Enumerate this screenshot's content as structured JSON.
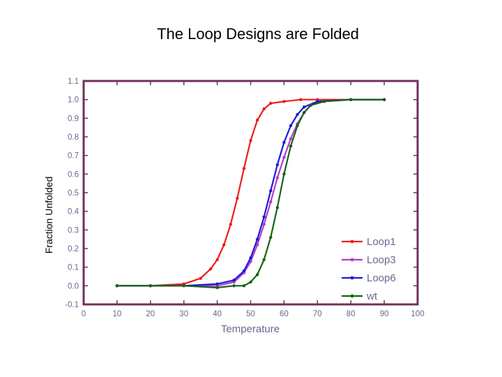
{
  "slide": {
    "title": "The Loop Designs are Folded"
  },
  "chart_data": {
    "type": "line",
    "title": "",
    "xlabel": "Temperature",
    "ylabel": "Fraction Unfolded",
    "xlim": [
      0,
      100
    ],
    "ylim": [
      -0.1,
      1.1
    ],
    "x_ticks": [
      "0",
      "10",
      "20",
      "30",
      "40",
      "50",
      "60",
      "70",
      "80",
      "90",
      "100"
    ],
    "y_ticks": [
      "-0.1",
      "0.0",
      "0.1",
      "0.2",
      "0.3",
      "0.4",
      "0.5",
      "0.6",
      "0.7",
      "0.8",
      "0.9",
      "1.0",
      "1.1"
    ],
    "legend_position": "bottom-right",
    "grid": false,
    "series": [
      {
        "name": "Loop1",
        "color": "#ee1c1c",
        "points": [
          [
            10,
            0.0
          ],
          [
            20,
            0.0
          ],
          [
            30,
            0.01
          ],
          [
            35,
            0.04
          ],
          [
            38,
            0.09
          ],
          [
            40,
            0.14
          ],
          [
            42,
            0.22
          ],
          [
            44,
            0.33
          ],
          [
            46,
            0.47
          ],
          [
            48,
            0.63
          ],
          [
            50,
            0.78
          ],
          [
            52,
            0.89
          ],
          [
            54,
            0.95
          ],
          [
            56,
            0.98
          ],
          [
            60,
            0.99
          ],
          [
            65,
            1.0
          ],
          [
            70,
            1.0
          ],
          [
            80,
            1.0
          ],
          [
            90,
            1.0
          ]
        ]
      },
      {
        "name": "Loop3",
        "color": "#b23bd1",
        "points": [
          [
            10,
            0.0
          ],
          [
            20,
            0.0
          ],
          [
            30,
            0.0
          ],
          [
            40,
            0.0
          ],
          [
            45,
            0.02
          ],
          [
            48,
            0.07
          ],
          [
            50,
            0.13
          ],
          [
            52,
            0.22
          ],
          [
            54,
            0.33
          ],
          [
            56,
            0.45
          ],
          [
            58,
            0.58
          ],
          [
            60,
            0.69
          ],
          [
            62,
            0.79
          ],
          [
            64,
            0.87
          ],
          [
            66,
            0.93
          ],
          [
            68,
            0.97
          ],
          [
            72,
            0.99
          ],
          [
            80,
            1.0
          ],
          [
            90,
            1.0
          ]
        ]
      },
      {
        "name": "Loop6",
        "color": "#1a1adb",
        "points": [
          [
            10,
            0.0
          ],
          [
            20,
            0.0
          ],
          [
            30,
            0.0
          ],
          [
            40,
            0.01
          ],
          [
            45,
            0.03
          ],
          [
            48,
            0.08
          ],
          [
            50,
            0.15
          ],
          [
            52,
            0.25
          ],
          [
            54,
            0.37
          ],
          [
            56,
            0.51
          ],
          [
            58,
            0.65
          ],
          [
            60,
            0.77
          ],
          [
            62,
            0.86
          ],
          [
            64,
            0.92
          ],
          [
            66,
            0.96
          ],
          [
            70,
            0.99
          ],
          [
            80,
            1.0
          ],
          [
            90,
            1.0
          ]
        ]
      },
      {
        "name": "wt",
        "color": "#156215",
        "points": [
          [
            10,
            0.0
          ],
          [
            20,
            0.0
          ],
          [
            30,
            0.0
          ],
          [
            40,
            -0.01
          ],
          [
            45,
            0.0
          ],
          [
            48,
            0.0
          ],
          [
            50,
            0.02
          ],
          [
            52,
            0.06
          ],
          [
            54,
            0.14
          ],
          [
            56,
            0.26
          ],
          [
            58,
            0.42
          ],
          [
            60,
            0.6
          ],
          [
            62,
            0.75
          ],
          [
            64,
            0.86
          ],
          [
            66,
            0.93
          ],
          [
            68,
            0.97
          ],
          [
            72,
            0.99
          ],
          [
            80,
            1.0
          ],
          [
            90,
            1.0
          ]
        ]
      }
    ]
  }
}
